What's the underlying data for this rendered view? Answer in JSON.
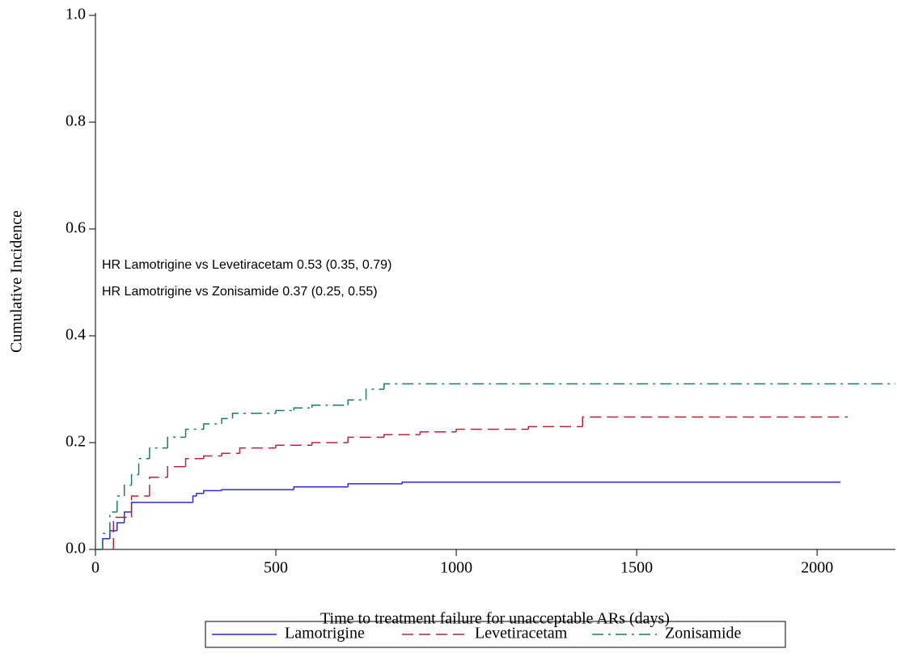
{
  "chart_data": {
    "type": "step",
    "x_label": "Time to treatment failure for unacceptable ARs (days)",
    "y_label": "Cumulative Incidence",
    "annotations": [
      "HR Lamotrigine vs Levetiracetam 0.53 (0.35, 0.79)",
      "HR Lamotrigine vs Zonisamide 0.37 (0.25, 0.55)"
    ],
    "xlim": [
      0,
      2217
    ],
    "ylim": [
      0,
      1.0
    ],
    "xticks": [
      0,
      500,
      1000,
      1500,
      2000
    ],
    "yticks": [
      {
        "value": 0,
        "label": "0.0"
      },
      0.2,
      0.4,
      0.6,
      0.8,
      {
        "value": 1,
        "label": "1.0"
      }
    ],
    "series": [
      {
        "name": "Lamotrigine",
        "color": "#2b2bd0",
        "dash": "none",
        "x": [
          0,
          20,
          40,
          60,
          80,
          100,
          270,
          280,
          300,
          350,
          550,
          700,
          850,
          2065
        ],
        "values": [
          0,
          0.02,
          0.035,
          0.05,
          0.07,
          0.088,
          0.1,
          0.105,
          0.11,
          0.112,
          0.117,
          0.123,
          0.126,
          0.126
        ]
      },
      {
        "name": "Levetiracetam",
        "color": "#b0263a",
        "dash": "14 7",
        "x": [
          0,
          50,
          100,
          150,
          200,
          250,
          300,
          350,
          400,
          500,
          600,
          700,
          800,
          900,
          1000,
          1200,
          1350,
          2085
        ],
        "values": [
          0,
          0.06,
          0.1,
          0.135,
          0.155,
          0.17,
          0.175,
          0.18,
          0.19,
          0.195,
          0.2,
          0.21,
          0.215,
          0.22,
          0.225,
          0.23,
          0.248,
          0.248
        ]
      },
      {
        "name": "Zonisamide",
        "color": "#1f7a6e",
        "dash": "14 6 3 6",
        "x": [
          0,
          20,
          40,
          60,
          80,
          100,
          120,
          150,
          200,
          250,
          300,
          350,
          380,
          500,
          550,
          600,
          700,
          750,
          800,
          2217
        ],
        "values": [
          0,
          0.03,
          0.07,
          0.1,
          0.12,
          0.14,
          0.17,
          0.19,
          0.21,
          0.225,
          0.235,
          0.245,
          0.255,
          0.26,
          0.265,
          0.27,
          0.28,
          0.3,
          0.31,
          0.31
        ]
      }
    ]
  }
}
